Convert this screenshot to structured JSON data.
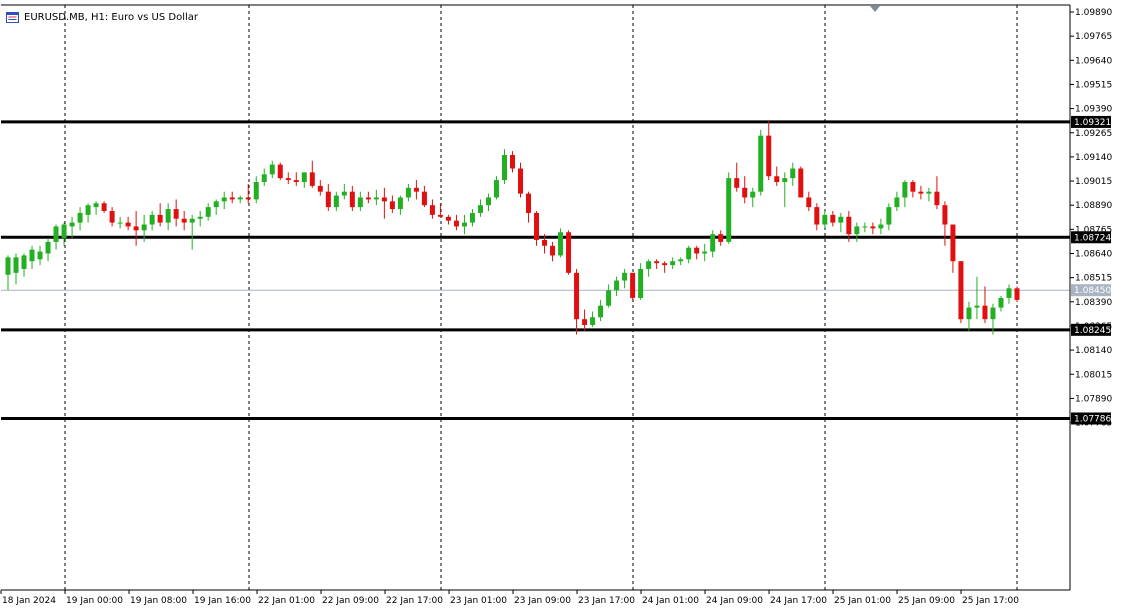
{
  "title": {
    "symbol_label": "EURUSD.MB, H1:  Euro vs US Dollar"
  },
  "chart_data": {
    "type": "candlestick",
    "title": "EURUSD.MB, H1:  Euro vs US Dollar",
    "ylim": [
      1.07705,
      1.09915
    ],
    "y_ticks": [
      "1.09890",
      "1.09765",
      "1.09640",
      "1.09515",
      "1.09390",
      "1.09265",
      "1.09140",
      "1.09015",
      "1.08890",
      "1.08765",
      "1.08640",
      "1.08515",
      "1.08390",
      "1.08265",
      "1.08140",
      "1.08015",
      "1.07890",
      "1.07765"
    ],
    "x_ticks": [
      "18 Jan 2024",
      "19 Jan 00:00",
      "19 Jan 08:00",
      "19 Jan 16:00",
      "22 Jan 01:00",
      "22 Jan 09:00",
      "22 Jan 17:00",
      "23 Jan 01:00",
      "23 Jan 09:00",
      "23 Jan 17:00",
      "24 Jan 01:00",
      "24 Jan 09:00",
      "24 Jan 17:00",
      "25 Jan 01:00",
      "25 Jan 09:00",
      "25 Jan 17:00"
    ],
    "horizontal_levels": [
      {
        "value": 1.09321,
        "label": "1.09321"
      },
      {
        "value": 1.08724,
        "label": "1.08724"
      },
      {
        "value": 1.08245,
        "label": "1.08245"
      },
      {
        "value": 1.07786,
        "label": "1.07786"
      }
    ],
    "current_price": {
      "value": 1.0845,
      "label": "1.08450"
    },
    "colors": {
      "bull": "#22b022",
      "bear": "#e01010",
      "level": "#000000",
      "current": "#a9b4c2",
      "grid": "#000000"
    },
    "candles": [
      [
        1.0853,
        1.0863,
        1.0845,
        1.0862
      ],
      [
        1.0854,
        1.0864,
        1.0848,
        1.0862
      ],
      [
        1.0856,
        1.0864,
        1.0852,
        1.0863
      ],
      [
        1.086,
        1.0868,
        1.0856,
        1.0866
      ],
      [
        1.0861,
        1.0868,
        1.0858,
        1.0865
      ],
      [
        1.0864,
        1.0872,
        1.086,
        1.087
      ],
      [
        1.087,
        1.0879,
        1.0866,
        1.0878
      ],
      [
        1.0872,
        1.088,
        1.0868,
        1.0879
      ],
      [
        1.0878,
        1.0883,
        1.0872,
        1.088
      ],
      [
        1.088,
        1.0888,
        1.0876,
        1.0885
      ],
      [
        1.0884,
        1.089,
        1.088,
        1.0889
      ],
      [
        1.0888,
        1.0891,
        1.0884,
        1.089
      ],
      [
        1.089,
        1.0891,
        1.0885,
        1.0886
      ],
      [
        1.0886,
        1.0888,
        1.0878,
        1.088
      ],
      [
        1.088,
        1.0883,
        1.0877,
        1.088
      ],
      [
        1.088,
        1.0883,
        1.0876,
        1.0878
      ],
      [
        1.0878,
        1.0886,
        1.0868,
        1.0876
      ],
      [
        1.0876,
        1.0884,
        1.087,
        1.0879
      ],
      [
        1.0879,
        1.0886,
        1.0876,
        1.0884
      ],
      [
        1.0884,
        1.089,
        1.0878,
        1.088
      ],
      [
        1.088,
        1.089,
        1.0876,
        1.0887
      ],
      [
        1.0887,
        1.0892,
        1.0878,
        1.0882
      ],
      [
        1.0882,
        1.0886,
        1.0876,
        1.088
      ],
      [
        1.088,
        1.0884,
        1.0866,
        1.0882
      ],
      [
        1.0882,
        1.0886,
        1.0878,
        1.0883
      ],
      [
        1.0883,
        1.089,
        1.0881,
        1.0888
      ],
      [
        1.0888,
        1.0892,
        1.0884,
        1.0891
      ],
      [
        1.0891,
        1.0896,
        1.0887,
        1.0893
      ],
      [
        1.0893,
        1.0896,
        1.089,
        1.0892
      ],
      [
        1.0892,
        1.0894,
        1.089,
        1.0893
      ],
      [
        1.0893,
        1.09,
        1.089,
        1.0892
      ],
      [
        1.0892,
        1.0904,
        1.089,
        1.0901
      ],
      [
        1.0901,
        1.0908,
        1.0899,
        1.0905
      ],
      [
        1.0905,
        1.0912,
        1.0903,
        1.091
      ],
      [
        1.091,
        1.0911,
        1.0902,
        1.0903
      ],
      [
        1.0903,
        1.0906,
        1.09,
        1.0902
      ],
      [
        1.0902,
        1.0906,
        1.0899,
        1.0901
      ],
      [
        1.0901,
        1.0906,
        1.0898,
        1.0906
      ],
      [
        1.0906,
        1.0912,
        1.0898,
        1.0899
      ],
      [
        1.0899,
        1.0902,
        1.0894,
        1.0896
      ],
      [
        1.0896,
        1.09,
        1.0886,
        1.0888
      ],
      [
        1.0888,
        1.0896,
        1.0886,
        1.0894
      ],
      [
        1.0894,
        1.09,
        1.0892,
        1.0896
      ],
      [
        1.0896,
        1.0899,
        1.0886,
        1.0888
      ],
      [
        1.0888,
        1.0896,
        1.0886,
        1.0893
      ],
      [
        1.0893,
        1.0896,
        1.089,
        1.0892
      ],
      [
        1.0892,
        1.0897,
        1.0889,
        1.0893
      ],
      [
        1.0893,
        1.0898,
        1.0882,
        1.0891
      ],
      [
        1.0891,
        1.0894,
        1.0885,
        1.0887
      ],
      [
        1.0887,
        1.0894,
        1.0884,
        1.0893
      ],
      [
        1.0893,
        1.09,
        1.0891,
        1.0898
      ],
      [
        1.0898,
        1.0902,
        1.0892,
        1.0896
      ],
      [
        1.0896,
        1.0899,
        1.0888,
        1.0889
      ],
      [
        1.0889,
        1.0892,
        1.0882,
        1.0884
      ],
      [
        1.0884,
        1.089,
        1.0883,
        1.0883
      ],
      [
        1.0883,
        1.0884,
        1.0879,
        1.0881
      ],
      [
        1.0881,
        1.0884,
        1.0876,
        1.0878
      ],
      [
        1.0878,
        1.0884,
        1.0874,
        1.088
      ],
      [
        1.088,
        1.0887,
        1.0878,
        1.0885
      ],
      [
        1.0885,
        1.0892,
        1.0883,
        1.0889
      ],
      [
        1.0889,
        1.0895,
        1.0886,
        1.0893
      ],
      [
        1.0893,
        1.0904,
        1.0892,
        1.0902
      ],
      [
        1.0902,
        1.0918,
        1.09,
        1.0915
      ],
      [
        1.0915,
        1.0917,
        1.0906,
        1.0908
      ],
      [
        1.0908,
        1.0911,
        1.0893,
        1.0895
      ],
      [
        1.0895,
        1.0896,
        1.088,
        1.0885
      ],
      [
        1.0885,
        1.0886,
        1.0868,
        1.0871
      ],
      [
        1.0871,
        1.0874,
        1.0864,
        1.0868
      ],
      [
        1.0868,
        1.087,
        1.086,
        1.0863
      ],
      [
        1.0863,
        1.0877,
        1.0862,
        1.0875
      ],
      [
        1.0875,
        1.0876,
        1.0853,
        1.0854
      ],
      [
        1.0854,
        1.0856,
        1.0822,
        1.083
      ],
      [
        1.083,
        1.0835,
        1.0824,
        1.0827
      ],
      [
        1.0827,
        1.0834,
        1.0826,
        1.0831
      ],
      [
        1.0831,
        1.084,
        1.0829,
        1.0837
      ],
      [
        1.0837,
        1.0848,
        1.0836,
        1.0845
      ],
      [
        1.0845,
        1.0852,
        1.0842,
        1.085
      ],
      [
        1.085,
        1.0856,
        1.0846,
        1.0854
      ],
      [
        1.0854,
        1.0853,
        1.084,
        1.0841
      ],
      [
        1.0841,
        1.0859,
        1.084,
        1.0856
      ],
      [
        1.0856,
        1.0861,
        1.0852,
        1.086
      ],
      [
        1.086,
        1.0861,
        1.0856,
        1.0859
      ],
      [
        1.0859,
        1.086,
        1.0854,
        1.0858
      ],
      [
        1.0858,
        1.0862,
        1.0856,
        1.086
      ],
      [
        1.086,
        1.0862,
        1.0858,
        1.0861
      ],
      [
        1.0861,
        1.0868,
        1.0859,
        1.0867
      ],
      [
        1.0867,
        1.0868,
        1.0861,
        1.0864
      ],
      [
        1.0864,
        1.0869,
        1.086,
        1.0865
      ],
      [
        1.0865,
        1.0876,
        1.0862,
        1.0874
      ],
      [
        1.0874,
        1.0876,
        1.0868,
        1.087
      ],
      [
        1.087,
        1.0906,
        1.0869,
        1.0903
      ],
      [
        1.0903,
        1.0911,
        1.0896,
        1.0898
      ],
      [
        1.0898,
        1.0904,
        1.089,
        1.0893
      ],
      [
        1.0893,
        1.0898,
        1.0888,
        1.0896
      ],
      [
        1.0896,
        1.0928,
        1.0894,
        1.0925
      ],
      [
        1.0925,
        1.0933,
        1.0902,
        1.0904
      ],
      [
        1.0904,
        1.0909,
        1.0899,
        1.0901
      ],
      [
        1.0901,
        1.0906,
        1.0888,
        1.0903
      ],
      [
        1.0903,
        1.0911,
        1.0899,
        1.0908
      ],
      [
        1.0908,
        1.0909,
        1.0893,
        1.0893
      ],
      [
        1.0893,
        1.0896,
        1.0886,
        1.0888
      ],
      [
        1.0888,
        1.089,
        1.0876,
        1.0879
      ],
      [
        1.0879,
        1.0886,
        1.0877,
        1.0884
      ],
      [
        1.0884,
        1.0886,
        1.0878,
        1.088
      ],
      [
        1.088,
        1.0885,
        1.0875,
        1.0883
      ],
      [
        1.0883,
        1.0886,
        1.087,
        1.0874
      ],
      [
        1.0874,
        1.088,
        1.087,
        1.0878
      ],
      [
        1.0878,
        1.088,
        1.0875,
        1.0878
      ],
      [
        1.0878,
        1.088,
        1.0874,
        1.0877
      ],
      [
        1.0877,
        1.0882,
        1.0874,
        1.0879
      ],
      [
        1.0879,
        1.089,
        1.0876,
        1.0888
      ],
      [
        1.0888,
        1.0896,
        1.0886,
        1.0893
      ],
      [
        1.0893,
        1.0902,
        1.0888,
        1.0901
      ],
      [
        1.0901,
        1.0902,
        1.0893,
        1.0896
      ],
      [
        1.0896,
        1.0899,
        1.0892,
        1.0895
      ],
      [
        1.0895,
        1.0898,
        1.0891,
        1.0896
      ],
      [
        1.0896,
        1.0904,
        1.0887,
        1.0889
      ],
      [
        1.0889,
        1.0891,
        1.0868,
        1.0879
      ],
      [
        1.0879,
        1.0879,
        1.0854,
        1.086
      ],
      [
        1.086,
        1.086,
        1.0828,
        1.083
      ],
      [
        1.083,
        1.0839,
        1.0824,
        1.0836
      ],
      [
        1.0836,
        1.0852,
        1.083,
        1.0837
      ],
      [
        1.0837,
        1.0847,
        1.0828,
        1.083
      ],
      [
        1.083,
        1.0838,
        1.0822,
        1.0836
      ],
      [
        1.0836,
        1.0842,
        1.0834,
        1.0841
      ],
      [
        1.0841,
        1.0848,
        1.0838,
        1.0846
      ],
      [
        1.0846,
        1.0847,
        1.0839,
        1.084
      ]
    ]
  }
}
